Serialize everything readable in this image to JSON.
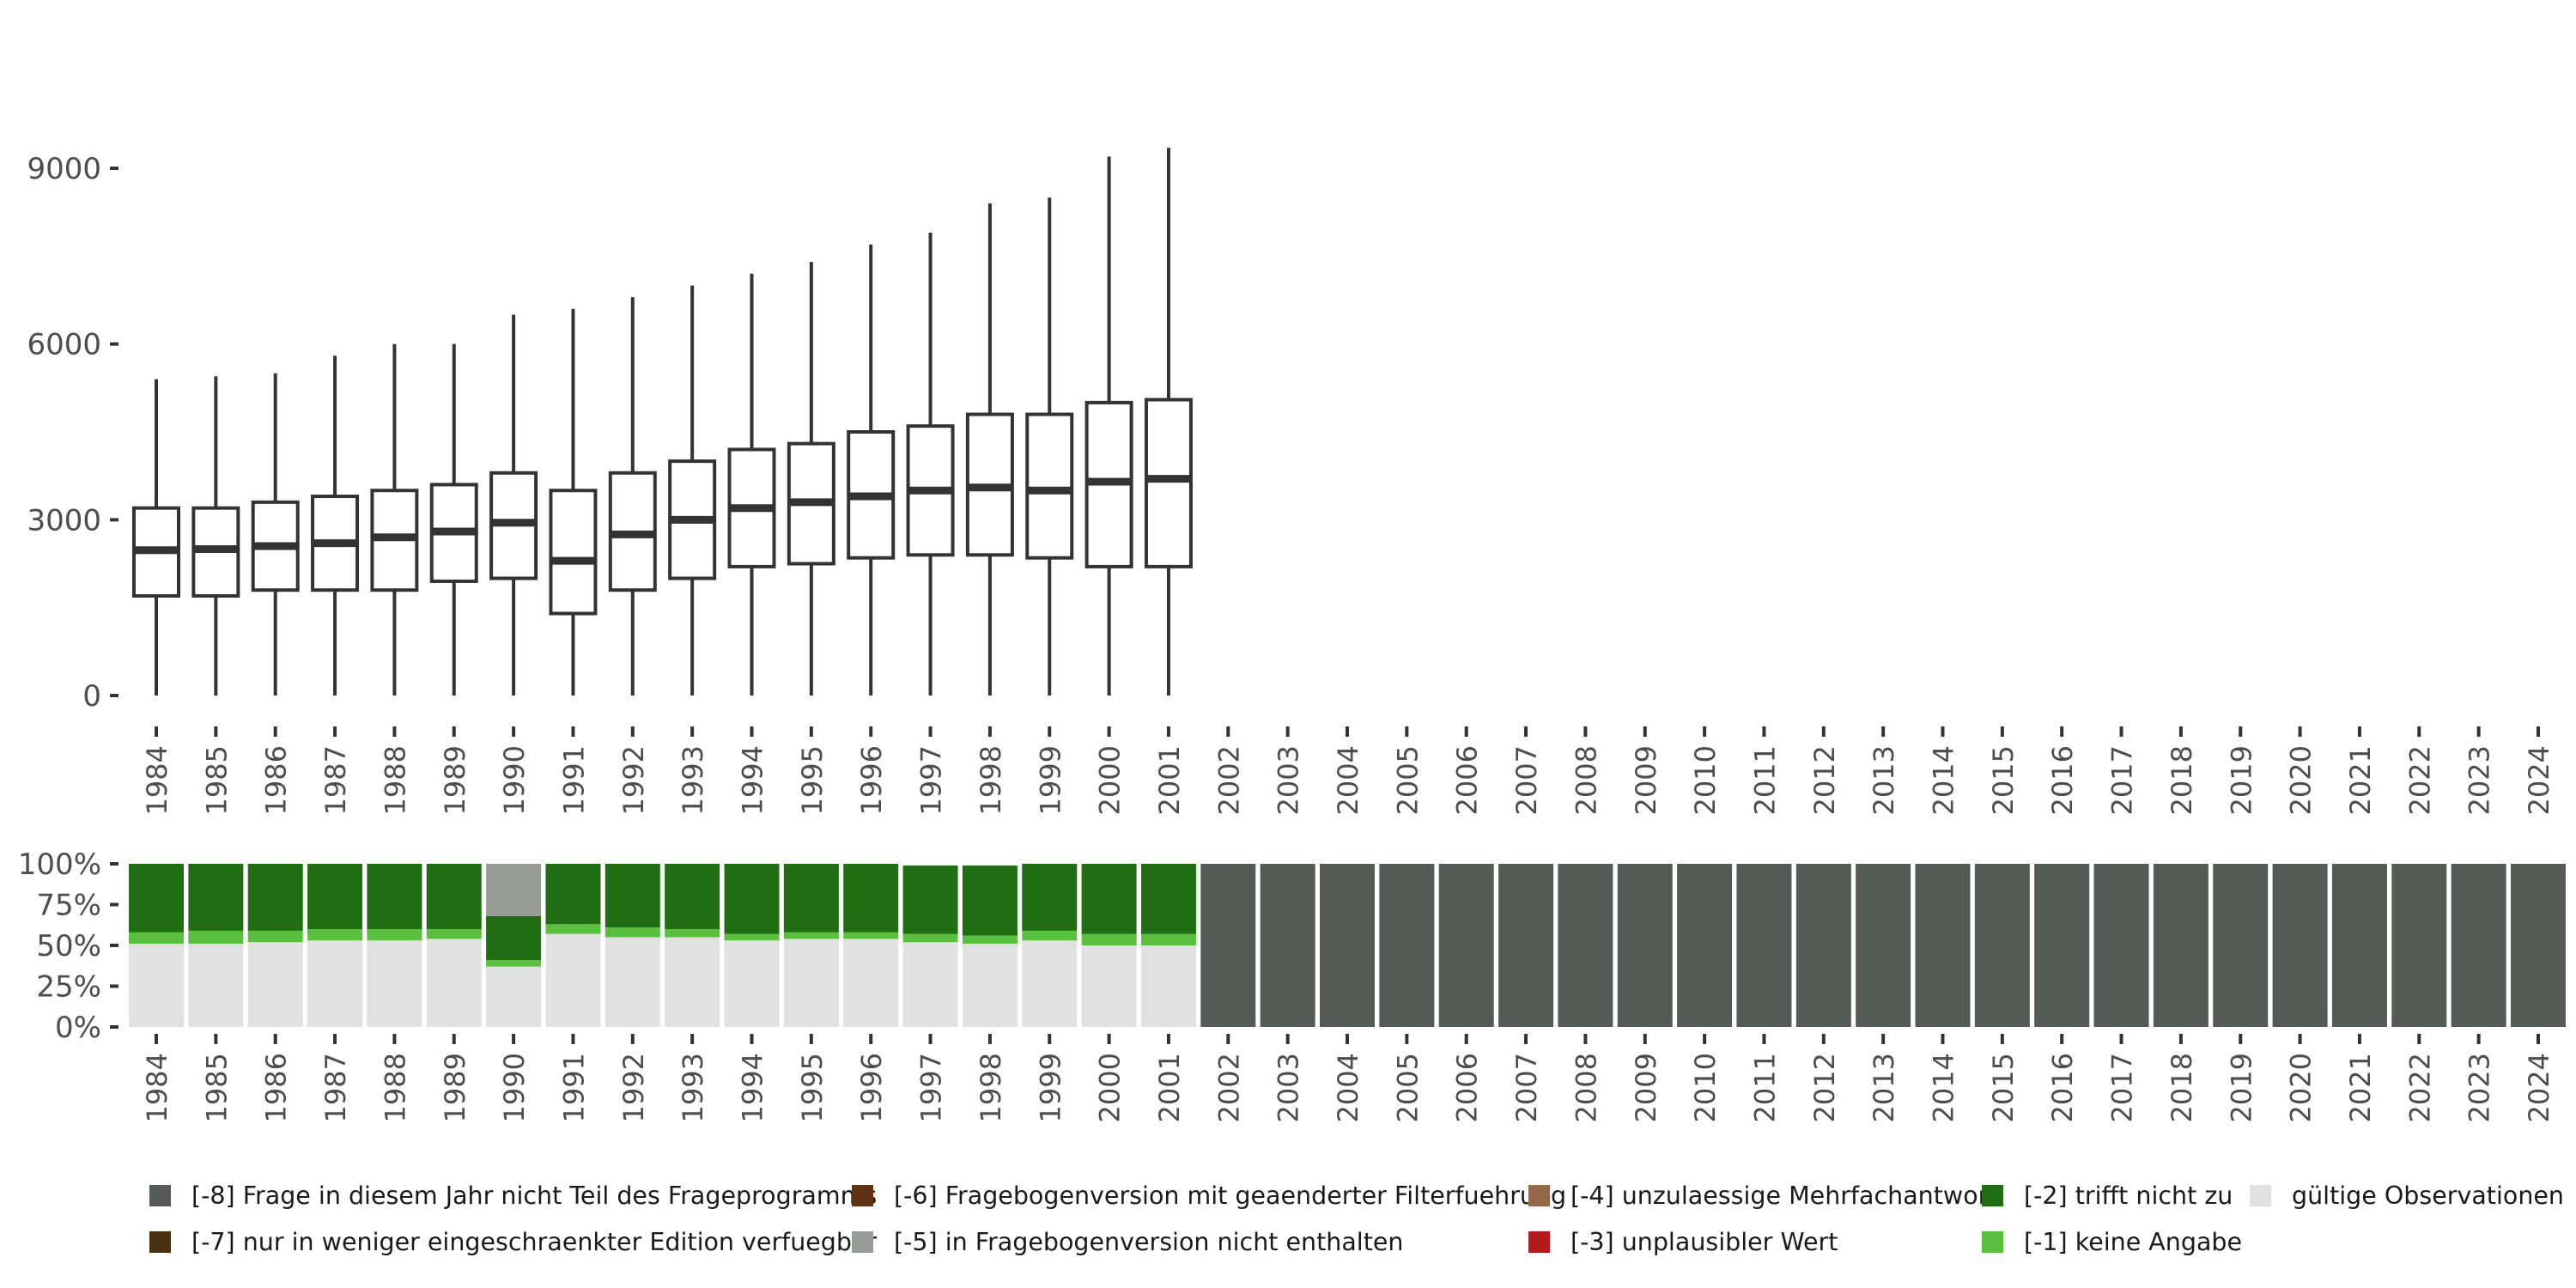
{
  "chart_data": [
    {
      "type": "boxplot",
      "categories": [
        "1984",
        "1985",
        "1986",
        "1987",
        "1988",
        "1989",
        "1990",
        "1991",
        "1992",
        "1993",
        "1994",
        "1995",
        "1996",
        "1997",
        "1998",
        "1999",
        "2000",
        "2001",
        "2002",
        "2003",
        "2004",
        "2005",
        "2006",
        "2007",
        "2008",
        "2009",
        "2010",
        "2011",
        "2012",
        "2013",
        "2014",
        "2015",
        "2016",
        "2017",
        "2018",
        "2019",
        "2020",
        "2021",
        "2022",
        "2023",
        "2024"
      ],
      "y_ticks": [
        0,
        3000,
        6000,
        9000
      ],
      "y_tick_labels": [
        "0",
        "3000",
        "6000",
        "9000"
      ],
      "ylim": [
        0,
        9500
      ],
      "boxes": [
        {
          "year": "1984",
          "min": 0,
          "q1": 1700,
          "median": 2480,
          "q3": 3200,
          "max": 5400
        },
        {
          "year": "1985",
          "min": 0,
          "q1": 1700,
          "median": 2500,
          "q3": 3200,
          "max": 5450
        },
        {
          "year": "1986",
          "min": 0,
          "q1": 1800,
          "median": 2550,
          "q3": 3300,
          "max": 5500
        },
        {
          "year": "1987",
          "min": 0,
          "q1": 1800,
          "median": 2600,
          "q3": 3400,
          "max": 5800
        },
        {
          "year": "1988",
          "min": 0,
          "q1": 1800,
          "median": 2700,
          "q3": 3500,
          "max": 6000
        },
        {
          "year": "1989",
          "min": 0,
          "q1": 1950,
          "median": 2800,
          "q3": 3600,
          "max": 6000
        },
        {
          "year": "1990",
          "min": 0,
          "q1": 2000,
          "median": 2950,
          "q3": 3800,
          "max": 6500
        },
        {
          "year": "1991",
          "min": 0,
          "q1": 1400,
          "median": 2300,
          "q3": 3500,
          "max": 6600
        },
        {
          "year": "1992",
          "min": 0,
          "q1": 1800,
          "median": 2750,
          "q3": 3800,
          "max": 6800
        },
        {
          "year": "1993",
          "min": 0,
          "q1": 2000,
          "median": 3000,
          "q3": 4000,
          "max": 7000
        },
        {
          "year": "1994",
          "min": 0,
          "q1": 2200,
          "median": 3200,
          "q3": 4200,
          "max": 7200
        },
        {
          "year": "1995",
          "min": 0,
          "q1": 2250,
          "median": 3300,
          "q3": 4300,
          "max": 7400
        },
        {
          "year": "1996",
          "min": 0,
          "q1": 2350,
          "median": 3400,
          "q3": 4500,
          "max": 7700
        },
        {
          "year": "1997",
          "min": 0,
          "q1": 2400,
          "median": 3500,
          "q3": 4600,
          "max": 7900
        },
        {
          "year": "1998",
          "min": 0,
          "q1": 2400,
          "median": 3550,
          "q3": 4800,
          "max": 8400
        },
        {
          "year": "1999",
          "min": 0,
          "q1": 2350,
          "median": 3500,
          "q3": 4800,
          "max": 8500
        },
        {
          "year": "2000",
          "min": 0,
          "q1": 2200,
          "median": 3650,
          "q3": 5000,
          "max": 9200
        },
        {
          "year": "2001",
          "min": 0,
          "q1": 2200,
          "median": 3700,
          "q3": 5050,
          "max": 9350
        }
      ]
    },
    {
      "type": "stacked_bar",
      "categories": [
        "1984",
        "1985",
        "1986",
        "1987",
        "1988",
        "1989",
        "1990",
        "1991",
        "1992",
        "1993",
        "1994",
        "1995",
        "1996",
        "1997",
        "1998",
        "1999",
        "2000",
        "2001",
        "2002",
        "2003",
        "2004",
        "2005",
        "2006",
        "2007",
        "2008",
        "2009",
        "2010",
        "2011",
        "2012",
        "2013",
        "2014",
        "2015",
        "2016",
        "2017",
        "2018",
        "2019",
        "2020",
        "2021",
        "2022",
        "2023",
        "2024"
      ],
      "y_ticks": [
        0,
        0.25,
        0.5,
        0.75,
        1
      ],
      "y_tick_labels": [
        "0%",
        "25%",
        "50%",
        "75%",
        "100%"
      ],
      "series": [
        {
          "name": "gültige Observationen",
          "color": "#e0e2df",
          "values": [
            0.51,
            0.51,
            0.52,
            0.53,
            0.53,
            0.54,
            0.37,
            0.57,
            0.55,
            0.55,
            0.53,
            0.54,
            0.54,
            0.52,
            0.51,
            0.53,
            0.5,
            0.5,
            0,
            0,
            0,
            0,
            0,
            0,
            0,
            0,
            0,
            0,
            0,
            0,
            0,
            0,
            0,
            0,
            0,
            0,
            0,
            0,
            0,
            0,
            0
          ]
        },
        {
          "name": "[-1] keine Angabe",
          "color": "#5abf3f",
          "values": [
            0.07,
            0.08,
            0.07,
            0.07,
            0.07,
            0.06,
            0.04,
            0.06,
            0.06,
            0.05,
            0.04,
            0.04,
            0.04,
            0.05,
            0.05,
            0.06,
            0.07,
            0.07,
            0,
            0,
            0,
            0,
            0,
            0,
            0,
            0,
            0,
            0,
            0,
            0,
            0,
            0,
            0,
            0,
            0,
            0,
            0,
            0,
            0,
            0,
            0
          ]
        },
        {
          "name": "[-2] trifft nicht zu",
          "color": "#216d13",
          "values": [
            0.42,
            0.41,
            0.41,
            0.4,
            0.4,
            0.4,
            0.27,
            0.37,
            0.39,
            0.4,
            0.43,
            0.42,
            0.42,
            0.42,
            0.43,
            0.41,
            0.43,
            0.43,
            0,
            0,
            0,
            0,
            0,
            0,
            0,
            0,
            0,
            0,
            0,
            0,
            0,
            0,
            0,
            0,
            0,
            0,
            0,
            0,
            0,
            0,
            0
          ]
        },
        {
          "name": "[-5] in Fragebogenversion nicht enthalten",
          "color": "#989c96",
          "values": [
            0,
            0,
            0,
            0,
            0,
            0,
            0.32,
            0,
            0,
            0,
            0,
            0,
            0,
            0,
            0,
            0,
            0,
            0,
            0,
            0,
            0,
            0,
            0,
            0,
            0,
            0,
            0,
            0,
            0,
            0,
            0,
            0,
            0,
            0,
            0,
            0,
            0,
            0,
            0,
            0,
            0
          ]
        },
        {
          "name": "[-8] Frage in diesem Jahr nicht Teil des Frageprogramms",
          "color": "#545b55",
          "values": [
            0,
            0,
            0,
            0,
            0,
            0,
            0,
            0,
            0,
            0,
            0,
            0,
            0,
            0,
            0,
            0,
            0,
            0,
            1,
            1,
            1,
            1,
            1,
            1,
            1,
            1,
            1,
            1,
            1,
            1,
            1,
            1,
            1,
            1,
            1,
            1,
            1,
            1,
            1,
            1,
            1
          ]
        }
      ]
    }
  ],
  "legend": [
    {
      "label": "[-8] Frage in diesem Jahr nicht Teil des Frageprogramms",
      "color": "#545b55"
    },
    {
      "label": "[-7] nur in weniger eingeschraenkter Edition verfuegbar",
      "color": "#4b2f12"
    },
    {
      "label": "[-6] Fragebogenversion mit geaenderter Filterfuehrung",
      "color": "#5f3314"
    },
    {
      "label": "[-5] in Fragebogenversion nicht enthalten",
      "color": "#989c96"
    },
    {
      "label": "[-4] unzulaessige Mehrfachantwort",
      "color": "#96684b"
    },
    {
      "label": "[-3] unplausibler Wert",
      "color": "#b21b1b"
    },
    {
      "label": "[-2] trifft nicht zu",
      "color": "#216d13"
    },
    {
      "label": "[-1] keine Angabe",
      "color": "#5abf3f"
    },
    {
      "label": "gültige Observationen",
      "color": "#e0e2df"
    }
  ]
}
